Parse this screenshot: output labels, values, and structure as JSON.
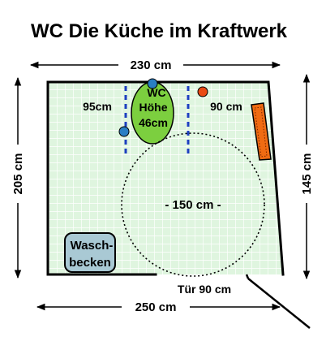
{
  "title": "WC Die Küche im Kraftwerk",
  "dimensions": {
    "top_width": "230 cm",
    "bottom_width": "250 cm",
    "left_height": "205 cm",
    "right_height": "145 cm",
    "left_clearance": "95cm",
    "right_clearance": "90 cm",
    "turning_circle": "- 150 cm -",
    "door_width": "Tür 90 cm"
  },
  "toilet": {
    "line1": "WC",
    "line2": "Höhe",
    "line3": "46cm"
  },
  "sink": {
    "line1": "Wasch-",
    "line2": "becken"
  },
  "colors": {
    "floor": "#dff5df",
    "grid": "#ffffff",
    "wall": "#000000",
    "toilet": "#7ccf3f",
    "sink": "#a9c9d4",
    "radiator": "#f06b12",
    "blue_marker": "#2a7fc4",
    "red_marker": "#ea4a14",
    "grab_rail": "#1c3fbf"
  }
}
